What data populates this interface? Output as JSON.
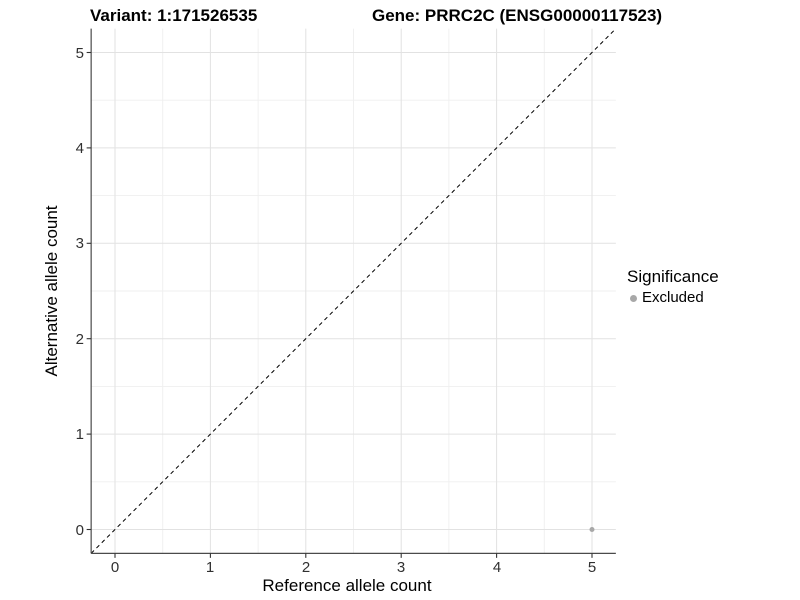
{
  "header": {
    "variant_title": "Variant: 1:171526535",
    "gene_title": "Gene: PRRC2C (ENSG00000117523)"
  },
  "chart_data": {
    "type": "scatter",
    "xlabel": "Reference allele count",
    "ylabel": "Alternative allele count",
    "xlim": [
      -0.25,
      5.25
    ],
    "ylim": [
      -0.25,
      5.25
    ],
    "x_ticks": [
      0,
      1,
      2,
      3,
      4,
      5
    ],
    "y_ticks": [
      0,
      1,
      2,
      3,
      4,
      5
    ],
    "grid": {
      "major_every": 1,
      "minor_every": 0.5,
      "major_color": "#e2e2e2",
      "minor_color": "#efefef"
    },
    "identity_line": {
      "style": "dashed",
      "color": "#000000",
      "from": -0.25,
      "to": 5.25
    },
    "series": [
      {
        "name": "Excluded",
        "color": "#a8a8a8",
        "point_radius": 2.5,
        "points": [
          [
            5,
            0
          ]
        ]
      }
    ],
    "legend": {
      "title": "Significance",
      "position": "right",
      "entries": [
        {
          "label": "Excluded",
          "color": "#a8a8a8"
        }
      ]
    },
    "axis_color": "#4a4a4a"
  }
}
